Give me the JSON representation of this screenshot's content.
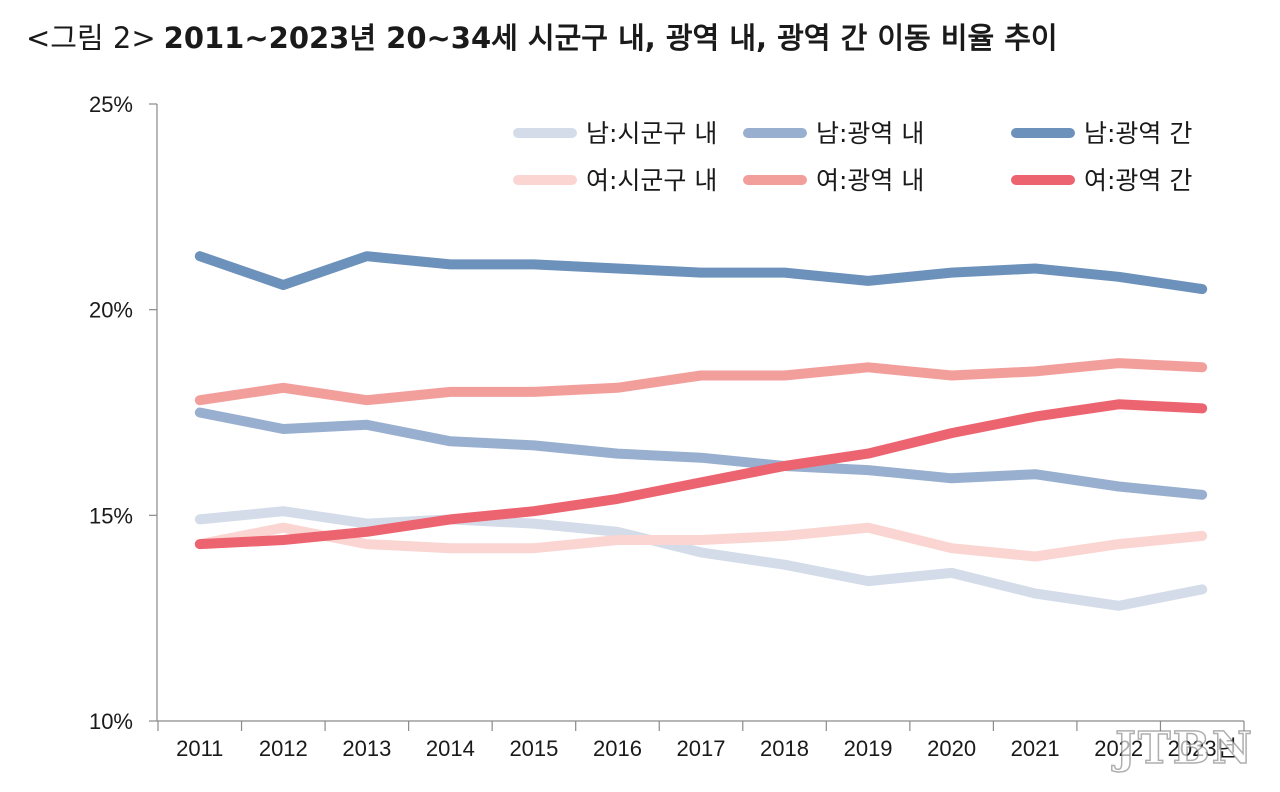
{
  "title": {
    "prefix": "<그림 2>",
    "main": "2011~2023년 20~34세 시군구 내, 광역 내, 광역 간 이동 비율 추이"
  },
  "watermark": "JTBN",
  "chart_data": {
    "type": "line",
    "x": [
      "2011",
      "2012",
      "2013",
      "2014",
      "2015",
      "2016",
      "2017",
      "2018",
      "2019",
      "2020",
      "2021",
      "2022",
      "2023년"
    ],
    "ylim": [
      10,
      25
    ],
    "yticks": [
      "10%",
      "15%",
      "20%",
      "25%"
    ],
    "ytick_values": [
      10,
      15,
      20,
      25
    ],
    "grid": false,
    "legend_position": "top-right",
    "series": [
      {
        "name": "남:시군구 내",
        "color": "#d4dcea",
        "values": [
          14.9,
          15.1,
          14.8,
          14.9,
          14.8,
          14.6,
          14.1,
          13.8,
          13.4,
          13.6,
          13.1,
          12.8,
          13.2
        ]
      },
      {
        "name": "남:광역 내",
        "color": "#98afcf",
        "values": [
          17.5,
          17.1,
          17.2,
          16.8,
          16.7,
          16.5,
          16.4,
          16.2,
          16.1,
          15.9,
          16.0,
          15.7,
          15.5
        ]
      },
      {
        "name": "남:광역 간",
        "color": "#6c91bb",
        "values": [
          21.3,
          20.6,
          21.3,
          21.1,
          21.1,
          21.0,
          20.9,
          20.9,
          20.7,
          20.9,
          21.0,
          20.8,
          20.5
        ]
      },
      {
        "name": "여:시군구 내",
        "color": "#fad5d2",
        "values": [
          14.3,
          14.7,
          14.3,
          14.2,
          14.2,
          14.4,
          14.4,
          14.5,
          14.7,
          14.2,
          14.0,
          14.3,
          14.5
        ]
      },
      {
        "name": "여:광역 내",
        "color": "#f29f9c",
        "values": [
          17.8,
          18.1,
          17.8,
          18.0,
          18.0,
          18.1,
          18.4,
          18.4,
          18.6,
          18.4,
          18.5,
          18.7,
          18.6
        ]
      },
      {
        "name": "여:광역 간",
        "color": "#ec6470",
        "values": [
          14.3,
          14.4,
          14.6,
          14.9,
          15.1,
          15.4,
          15.8,
          16.2,
          16.5,
          17.0,
          17.4,
          17.7,
          17.6
        ]
      }
    ]
  }
}
